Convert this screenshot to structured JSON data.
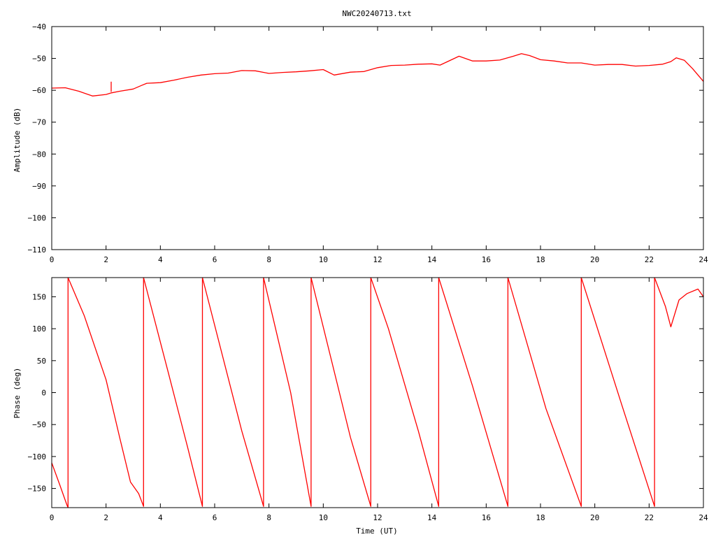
{
  "title": "NWC20240713.txt",
  "colors": {
    "series": "#ff0000",
    "axes": "#000000",
    "background": "#ffffff"
  },
  "chart_data": [
    {
      "type": "line",
      "title": "NWC20240713.txt",
      "xlabel": "",
      "ylabel": "Amplitude (dB)",
      "xlim": [
        0,
        24
      ],
      "ylim": [
        -110,
        -40
      ],
      "xticks": [
        0,
        2,
        4,
        6,
        8,
        10,
        12,
        14,
        16,
        18,
        20,
        22,
        24
      ],
      "yticks": [
        -110,
        -100,
        -90,
        -80,
        -70,
        -60,
        -50,
        -40
      ],
      "xtick_labels": [
        "0",
        "2",
        "4",
        "6",
        "8",
        "10",
        "12",
        "14",
        "16",
        "18",
        "20",
        "22",
        "24"
      ],
      "ytick_labels": [
        "−110",
        "−100",
        "−90",
        "−80",
        "−70",
        "−60",
        "−50",
        "−40"
      ],
      "grid": false,
      "series": [
        {
          "x": [
            0,
            0.5,
            1.0,
            1.5,
            2.0,
            2.2,
            2.5,
            3.0,
            3.3,
            3.5,
            4.0,
            4.5,
            5.0,
            5.5,
            6.0,
            6.5,
            7.0,
            7.5,
            8.0,
            8.5,
            9.0,
            9.5,
            10.0,
            10.4,
            11.0,
            11.5,
            12.0,
            12.5,
            13.0,
            13.5,
            14.0,
            14.3,
            14.5,
            15.0,
            15.5,
            16.0,
            16.5,
            17.0,
            17.3,
            17.6,
            18.0,
            18.5,
            19.0,
            19.5,
            20.0,
            20.5,
            21.0,
            21.5,
            22.0,
            22.5,
            22.8,
            23.0,
            23.3,
            23.6,
            24.0
          ],
          "y": [
            -59.3,
            -59.2,
            -60.3,
            -61.8,
            -61.3,
            -60.8,
            -60.3,
            -59.6,
            -58.5,
            -57.8,
            -57.6,
            -56.8,
            -55.9,
            -55.2,
            -54.8,
            -54.6,
            -53.8,
            -53.9,
            -54.7,
            -54.4,
            -54.2,
            -53.9,
            -53.5,
            -55.2,
            -54.3,
            -54.1,
            -52.9,
            -52.2,
            -52.1,
            -51.8,
            -51.7,
            -52.1,
            -51.3,
            -49.3,
            -50.8,
            -50.8,
            -50.5,
            -49.3,
            -48.5,
            -49.1,
            -50.4,
            -50.8,
            -51.4,
            -51.4,
            -52.1,
            -51.9,
            -51.9,
            -52.4,
            -52.2,
            -51.8,
            -51.0,
            -49.8,
            -50.6,
            -53.2,
            -57.2
          ]
        },
        {
          "x": [
            2.19,
            2.19
          ],
          "y": [
            -60.5,
            -57.3
          ]
        }
      ]
    },
    {
      "type": "line",
      "title": "",
      "xlabel": "Time (UT)",
      "ylabel": "Phase (deg)",
      "xlim": [
        0,
        24
      ],
      "ylim": [
        -180,
        180
      ],
      "xticks": [
        0,
        2,
        4,
        6,
        8,
        10,
        12,
        14,
        16,
        18,
        20,
        22,
        24
      ],
      "yticks": [
        -150,
        -100,
        -50,
        0,
        50,
        100,
        150
      ],
      "xtick_labels": [
        "0",
        "2",
        "4",
        "6",
        "8",
        "10",
        "12",
        "14",
        "16",
        "18",
        "20",
        "22",
        "24"
      ],
      "ytick_labels": [
        "−150",
        "−100",
        "−50",
        "0",
        "50",
        "100",
        "150"
      ],
      "grid": false,
      "series": [
        {
          "x": [
            0,
            0.3,
            0.55,
            0.6,
            0.6,
            0.6,
            1.2,
            2.0,
            2.5,
            2.9,
            3.2,
            3.38,
            3.38,
            3.38
          ],
          "y": [
            -110,
            -145,
            -175,
            -180,
            -180,
            180,
            120,
            20,
            -70,
            -140,
            -158,
            -178,
            -178,
            180
          ]
        },
        {
          "x": [
            3.38,
            4.3,
            5.0,
            5.55,
            5.55
          ],
          "y": [
            180,
            30,
            -85,
            -178,
            180
          ]
        },
        {
          "x": [
            5.55,
            7.0,
            7.8,
            7.8
          ],
          "y": [
            180,
            -60,
            -178,
            180
          ]
        },
        {
          "x": [
            7.8,
            8.8,
            9.55,
            9.55
          ],
          "y": [
            180,
            0,
            -178,
            180
          ]
        },
        {
          "x": [
            9.55,
            11.0,
            11.75,
            11.75
          ],
          "y": [
            180,
            -70,
            -178,
            180
          ]
        },
        {
          "x": [
            11.75,
            12.4,
            13.5,
            14.25,
            14.25
          ],
          "y": [
            180,
            100,
            -60,
            -178,
            180
          ]
        },
        {
          "x": [
            14.25,
            15.5,
            16.8,
            16.8
          ],
          "y": [
            180,
            10,
            -178,
            180
          ]
        },
        {
          "x": [
            16.8,
            18.2,
            19.5,
            19.5
          ],
          "y": [
            180,
            -25,
            -178,
            180
          ]
        },
        {
          "x": [
            19.5,
            21.0,
            22.2,
            22.2
          ],
          "y": [
            180,
            -20,
            -178,
            180
          ]
        },
        {
          "x": [
            22.2,
            22.6,
            22.8,
            23.1,
            23.4,
            23.8,
            24.0
          ],
          "y": [
            180,
            135,
            103,
            145,
            155,
            162,
            150
          ]
        }
      ]
    }
  ]
}
